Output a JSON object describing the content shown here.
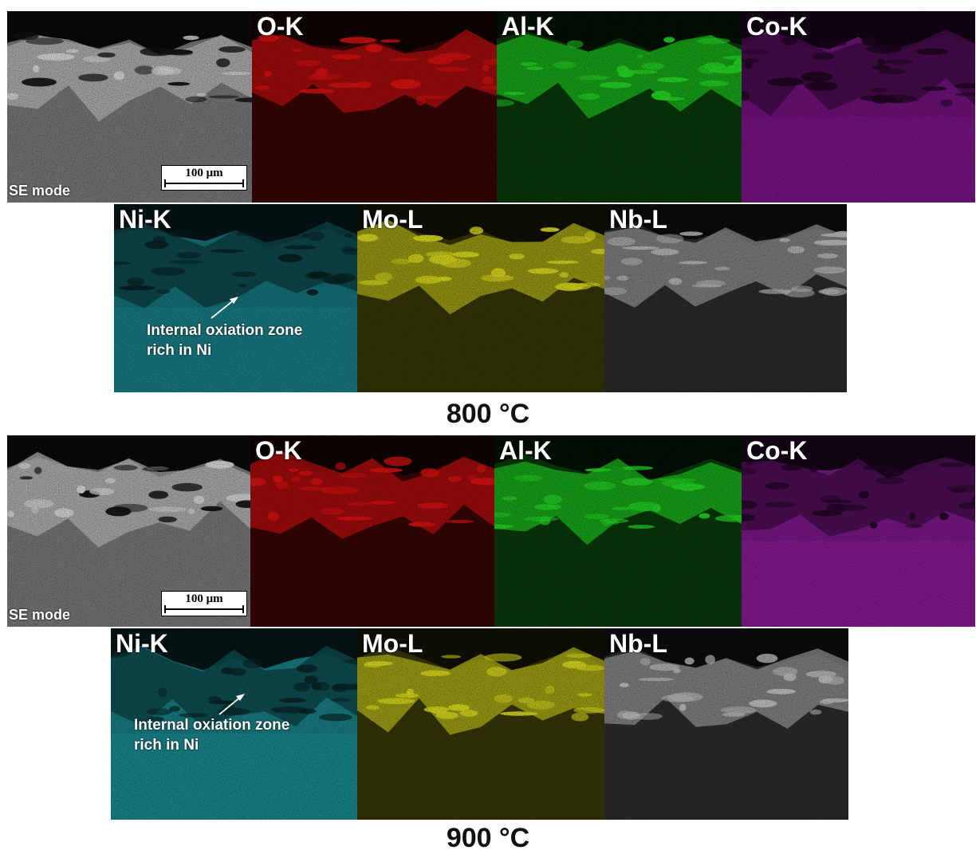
{
  "figure": {
    "blocks": [
      {
        "temperature": "800 °C",
        "row1": [
          {
            "label": "",
            "tone": "grey",
            "color": "#bdbdbd"
          },
          {
            "label": "O-K",
            "tone": "oxide",
            "color": "#e01010"
          },
          {
            "label": "Al-K",
            "tone": "oxide",
            "color": "#22e622"
          },
          {
            "label": "Co-K",
            "tone": "bulk",
            "color": "#b21cc4"
          }
        ],
        "row2": [
          {
            "label": "Ni-K",
            "tone": "bulk",
            "color": "#22b8c4"
          },
          {
            "label": "Mo-L",
            "tone": "oxide",
            "color": "#d6d61c"
          },
          {
            "label": "Nb-L",
            "tone": "oxide",
            "color": "#b0b0b0"
          }
        ],
        "mode_label": "SE mode",
        "scale_bar": "100 μm",
        "annotation": [
          "Internal oxiation zone",
          "rich in Ni"
        ]
      },
      {
        "temperature": "900 °C",
        "row1": [
          {
            "label": "",
            "tone": "grey",
            "color": "#bdbdbd"
          },
          {
            "label": "O-K",
            "tone": "oxide",
            "color": "#e01010"
          },
          {
            "label": "Al-K",
            "tone": "oxide",
            "color": "#22e622"
          },
          {
            "label": "Co-K",
            "tone": "bulk",
            "color": "#c424d8"
          }
        ],
        "row2": [
          {
            "label": "Ni-K",
            "tone": "bulk",
            "color": "#26c8d2"
          },
          {
            "label": "Mo-L",
            "tone": "oxide",
            "color": "#dede1c"
          },
          {
            "label": "Nb-L",
            "tone": "oxide",
            "color": "#b4b4b4"
          }
        ],
        "mode_label": "SE mode",
        "scale_bar": "100 μm",
        "annotation": [
          "Internal oxiation zone",
          "rich in Ni"
        ]
      }
    ]
  }
}
